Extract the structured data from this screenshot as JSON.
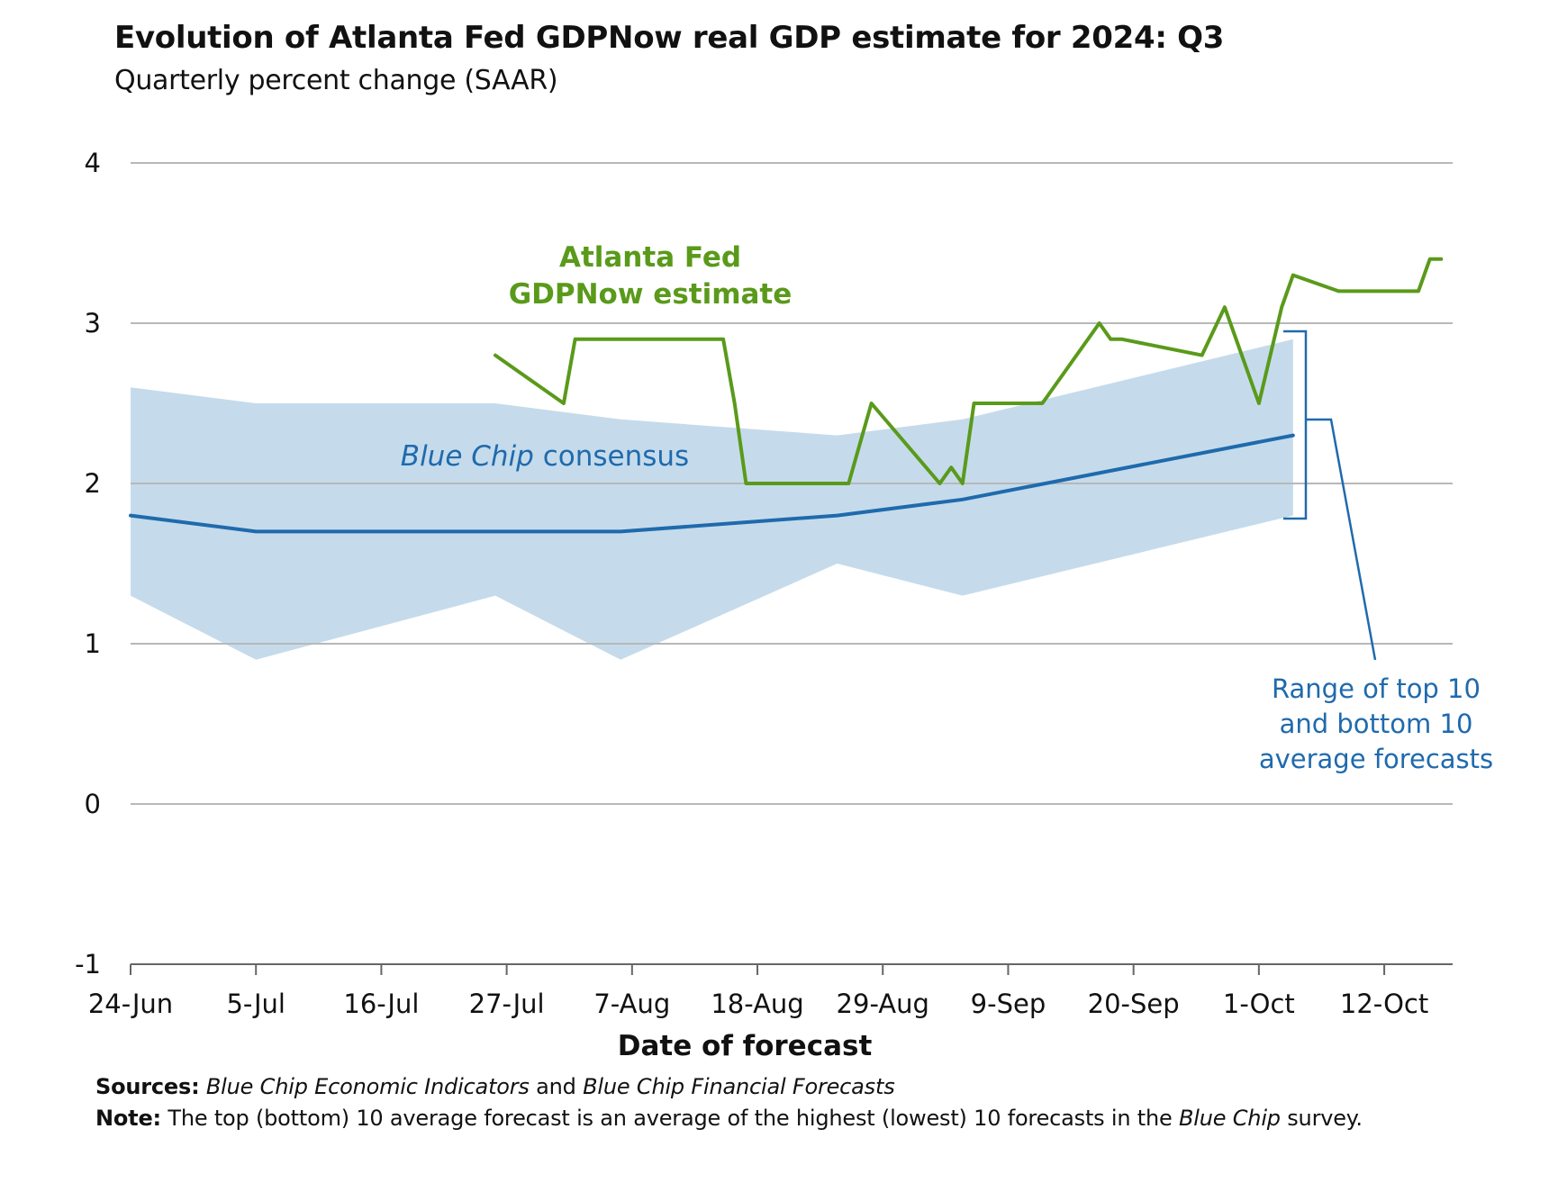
{
  "title": "Evolution of Atlanta Fed GDPNow real GDP estimate for 2024: Q3",
  "subtitle": "Quarterly percent change (SAAR)",
  "colors": {
    "gdpnow": "#5a9a1b",
    "consensus": "#1f6aad",
    "range": "#c5dbeb",
    "grid": "#b8b8b8",
    "axis": "#666666"
  },
  "annotations": {
    "gdpnow_line1": "Atlanta Fed",
    "gdpnow_line2": "GDPNow estimate",
    "consensus_italic": "Blue Chip",
    "consensus_rest": " consensus",
    "range_line1": "Range of top 10",
    "range_line2": "and bottom 10",
    "range_line3": "average forecasts"
  },
  "footer": {
    "sources_label": "Sources:",
    "sources_part1": "Blue Chip Economic Indicators",
    "sources_and": " and ",
    "sources_part2": "Blue Chip Financial Forecasts",
    "note_label": "Note:",
    "note_text": " The top (bottom) 10 average forecast is an average of the highest (lowest) 10 forecasts in the ",
    "note_italic": "Blue Chip",
    "note_end": " survey."
  },
  "chart_data": {
    "type": "line",
    "xlabel": "Date of forecast",
    "ylabel": "",
    "ylim": [
      -1,
      4
    ],
    "yticks": [
      -1,
      0,
      1,
      2,
      3,
      4
    ],
    "xlim": [
      "2024-06-24",
      "2024-10-18"
    ],
    "xtick_labels": [
      "24-Jun",
      "5-Jul",
      "16-Jul",
      "27-Jul",
      "7-Aug",
      "18-Aug",
      "29-Aug",
      "9-Sep",
      "20-Sep",
      "1-Oct",
      "12-Oct"
    ],
    "xtick_dates": [
      "2024-06-24",
      "2024-07-05",
      "2024-07-16",
      "2024-07-27",
      "2024-08-07",
      "2024-08-18",
      "2024-08-29",
      "2024-09-09",
      "2024-09-20",
      "2024-10-01",
      "2024-10-12"
    ],
    "grid": true,
    "series": [
      {
        "name": "Atlanta Fed GDPNow estimate",
        "x": [
          "2024-07-26",
          "2024-08-01",
          "2024-08-01",
          "2024-08-02",
          "2024-08-15",
          "2024-08-16",
          "2024-08-17",
          "2024-08-26",
          "2024-08-28",
          "2024-09-03",
          "2024-09-04",
          "2024-09-05",
          "2024-09-06",
          "2024-09-06",
          "2024-09-12",
          "2024-09-17",
          "2024-09-18",
          "2024-09-19",
          "2024-09-26",
          "2024-09-28",
          "2024-10-01",
          "2024-10-03",
          "2024-10-04",
          "2024-10-08",
          "2024-10-15",
          "2024-10-16",
          "2024-10-17"
        ],
        "values": [
          2.8,
          2.5,
          2.5,
          2.9,
          2.9,
          2.5,
          2.0,
          2.0,
          2.5,
          2.0,
          2.1,
          2.0,
          2.5,
          2.5,
          2.5,
          3.0,
          2.9,
          2.9,
          2.8,
          3.1,
          2.5,
          3.1,
          3.3,
          3.2,
          3.2,
          3.4,
          3.4
        ]
      },
      {
        "name": "Blue Chip consensus",
        "x": [
          "2024-06-24",
          "2024-07-05",
          "2024-08-06",
          "2024-08-25",
          "2024-09-05",
          "2024-10-04"
        ],
        "values": [
          1.8,
          1.7,
          1.7,
          1.8,
          1.9,
          2.3
        ]
      }
    ],
    "range_band": {
      "name": "Range of top 10 and bottom 10 average forecasts",
      "x": [
        "2024-06-24",
        "2024-07-05",
        "2024-07-26",
        "2024-08-06",
        "2024-08-25",
        "2024-09-05",
        "2024-10-04"
      ],
      "upper": [
        2.6,
        2.5,
        2.5,
        2.4,
        2.3,
        2.4,
        2.9
      ],
      "lower": [
        1.3,
        0.9,
        1.3,
        0.9,
        1.5,
        1.3,
        1.8
      ]
    }
  }
}
